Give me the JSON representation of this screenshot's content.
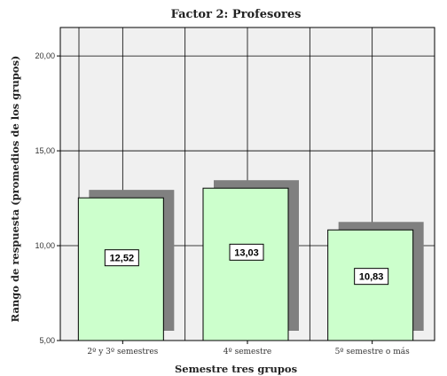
{
  "chart_data": {
    "type": "bar",
    "title": "Factor 2: Profesores",
    "xlabel": "Semestre tres grupos",
    "ylabel": "Rango de respuesta (promedios de los grupos)",
    "categories": [
      "2º y 3º semestres",
      "4º semestre",
      "5º semestre o más"
    ],
    "values": [
      12.52,
      13.03,
      10.83
    ],
    "data_labels": [
      "12,52",
      "13,03",
      "10,83"
    ],
    "ylim": [
      5,
      21.5
    ],
    "yticks": [
      5,
      10,
      15,
      20
    ],
    "ytick_labels": [
      "5,00",
      "10,00",
      "15,00",
      "20,00"
    ],
    "grid": true,
    "legend": "none",
    "colors": {
      "bar_fill": "#ccffcc",
      "bar_stroke": "#000000",
      "shadow": "#808080",
      "plot_bg": "#f0f0f0",
      "grid": "#000000"
    }
  }
}
